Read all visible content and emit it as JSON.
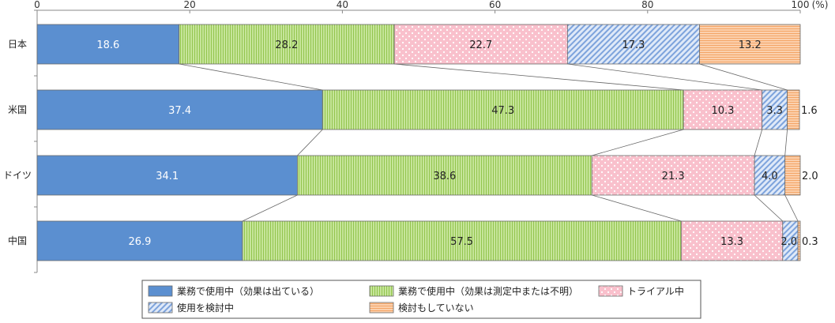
{
  "chart_data": {
    "type": "bar",
    "orientation": "horizontal",
    "stacked": true,
    "xlim": [
      0,
      100
    ],
    "x_ticks": [
      "0",
      "20",
      "40",
      "60",
      "80",
      "100"
    ],
    "x_unit_label": "(%)",
    "categories": [
      "日本",
      "米国",
      "ドイツ",
      "中国"
    ],
    "series": [
      {
        "name": "業務で使用中（効果は出ている）",
        "values": [
          18.6,
          37.4,
          34.1,
          26.9
        ],
        "value_labels": [
          "18.6",
          "37.4",
          "34.1",
          "26.9"
        ],
        "color": "#5b8fd0",
        "pattern": "solid"
      },
      {
        "name": "業務で使用中（効果は測定中または不明）",
        "values": [
          28.2,
          47.3,
          38.6,
          57.5
        ],
        "value_labels": [
          "28.2",
          "47.3",
          "38.6",
          "57.5"
        ],
        "color": "#b4dc78",
        "pattern": "vertical-lines"
      },
      {
        "name": "トライアル中",
        "values": [
          22.7,
          10.3,
          21.3,
          13.3
        ],
        "value_labels": [
          "22.7",
          "10.3",
          "21.3",
          "13.3"
        ],
        "color": "#f9c0cc",
        "pattern": "dots"
      },
      {
        "name": "使用を検討中",
        "values": [
          17.3,
          3.3,
          4.0,
          2.0
        ],
        "value_labels": [
          "17.3",
          "3.3",
          "4.0",
          "2.0"
        ],
        "color": "#a9c4ea",
        "pattern": "diagonal-lines"
      },
      {
        "name": "検討もしていない",
        "values": [
          13.2,
          1.6,
          2.0,
          0.3
        ],
        "value_labels": [
          "13.2",
          "1.6",
          "2.0",
          "0.3"
        ],
        "color": "#f9be8e",
        "pattern": "horizontal-lines"
      }
    ],
    "connector_lines": true,
    "grid": false,
    "legend_position": "bottom"
  }
}
